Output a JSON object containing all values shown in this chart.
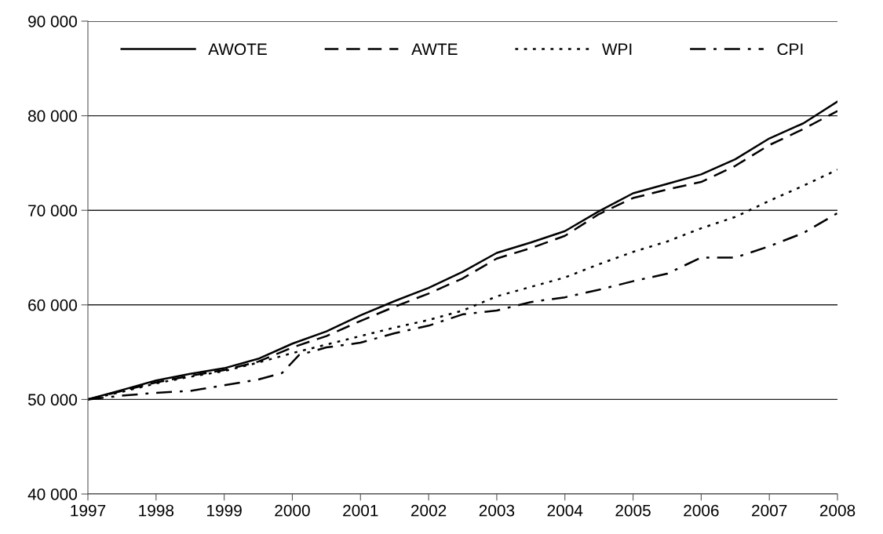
{
  "chart_data": {
    "type": "line",
    "x": [
      1997,
      1997.5,
      1998,
      1998.5,
      1999,
      1999.5,
      2000,
      2000.5,
      2001,
      2001.5,
      2002,
      2002.5,
      2003,
      2003.5,
      2004,
      2004.5,
      2005,
      2005.5,
      2006,
      2006.5,
      2007,
      2007.5,
      2008
    ],
    "series": [
      {
        "name": "AWOTE",
        "color": "#000000",
        "line_style": "solid",
        "values": [
          50000,
          51000,
          52000,
          52700,
          53300,
          54300,
          55900,
          57200,
          58900,
          60400,
          61800,
          63500,
          65500,
          66600,
          67800,
          69900,
          71800,
          72800,
          73800,
          75400,
          77600,
          79200,
          81500
        ]
      },
      {
        "name": "AWTE",
        "color": "#000000",
        "line_style": "dashed",
        "values": [
          50000,
          50900,
          51800,
          52500,
          53100,
          54000,
          55500,
          56700,
          58300,
          59800,
          61200,
          62800,
          64900,
          66000,
          67300,
          69600,
          71300,
          72200,
          73000,
          74700,
          76900,
          78600,
          80500
        ]
      },
      {
        "name": "WPI",
        "color": "#000000",
        "line_style": "dotted",
        "values": [
          50000,
          50800,
          51700,
          52400,
          53000,
          53900,
          54900,
          55800,
          56700,
          57600,
          58400,
          59400,
          60900,
          61900,
          62900,
          64300,
          65600,
          66700,
          68100,
          69300,
          71000,
          72600,
          74300
        ]
      },
      {
        "name": "CPI",
        "color": "#000000",
        "line_style": "dashdot",
        "x": [
          1997,
          1997.5,
          1998,
          1998.5,
          1999,
          1999.5,
          1999.85,
          2000.1,
          2000.5,
          2001,
          2001.5,
          2002,
          2002.5,
          2003,
          2003.5,
          2004,
          2004.5,
          2005,
          2005.5,
          2006,
          2006.5,
          2007,
          2007.5,
          2008
        ],
        "values": [
          50000,
          50400,
          50700,
          50900,
          51500,
          52100,
          52800,
          54700,
          55500,
          56000,
          57000,
          57800,
          59000,
          59400,
          60300,
          60800,
          61600,
          62500,
          63300,
          65000,
          65000,
          66200,
          67600,
          69700
        ]
      }
    ],
    "xlim": [
      1997,
      2008
    ],
    "xticks": [
      1997,
      1998,
      1999,
      2000,
      2001,
      2002,
      2003,
      2004,
      2005,
      2006,
      2007,
      2008
    ],
    "ylim": [
      40000,
      90000
    ],
    "yticks": [
      {
        "value": 40000,
        "label": "40 000"
      },
      {
        "value": 50000,
        "label": "50 000"
      },
      {
        "value": 60000,
        "label": "60 000"
      },
      {
        "value": 70000,
        "label": "70 000"
      },
      {
        "value": 80000,
        "label": "80 000"
      },
      {
        "value": 90000,
        "label": "90 000"
      }
    ],
    "grid": "y",
    "legend": "top"
  }
}
